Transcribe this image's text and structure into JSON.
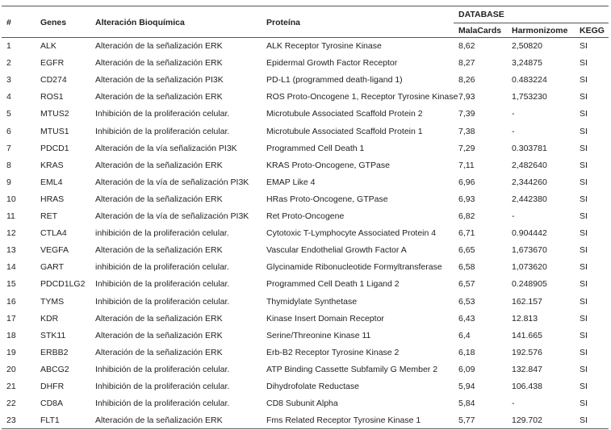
{
  "table": {
    "group_header": "DATABASE",
    "columns": [
      "#",
      "Genes",
      "Alteración Bioquímica",
      "Proteína",
      "MalaCards",
      "Harmonizome",
      "KEGG"
    ],
    "rows": [
      [
        "1",
        "ALK",
        "Alteración de la señalización ERK",
        "ALK Receptor Tyrosine Kinase",
        "8,62",
        "2,50820",
        "SI"
      ],
      [
        "2",
        "EGFR",
        "Alteración de la señalización ERK",
        "Epidermal Growth Factor Receptor",
        "8,27",
        "3,24875",
        "SI"
      ],
      [
        "3",
        "CD274",
        "Alteración de la señalización PI3K",
        "PD-L1 (programmed death-ligand 1)",
        "8,26",
        "0.483224",
        "SI"
      ],
      [
        "4",
        "ROS1",
        "Alteración de la señalización ERK",
        "ROS Proto-Oncogene 1, Receptor Tyrosine Kinase",
        "7,93",
        "1,753230",
        "SI"
      ],
      [
        "5",
        "MTUS2",
        "Inhibición de la proliferación celular.",
        "Microtubule Associated Scaffold Protein 2",
        "7,39",
        "-",
        "SI"
      ],
      [
        "6",
        "MTUS1",
        "Inhibición de la proliferación celular.",
        "Microtubule Associated Scaffold Protein 1",
        "7,38",
        "-",
        "SI"
      ],
      [
        "7",
        "PDCD1",
        "Alteración de la vía señalización PI3K",
        "Programmed Cell Death 1",
        "7,29",
        "0.303781",
        "SI"
      ],
      [
        "8",
        "KRAS",
        "Alteración de la señalización ERK",
        "KRAS Proto-Oncogene, GTPase",
        "7,11",
        "2,482640",
        "SI"
      ],
      [
        "9",
        "EML4",
        "Alteración de la vía de señalización PI3K",
        "EMAP Like 4",
        "6,96",
        "2,344260",
        "SI"
      ],
      [
        "10",
        "HRAS",
        "Alteración de la señalización ERK",
        "HRas Proto-Oncogene, GTPase",
        "6,93",
        "2,442380",
        "SI"
      ],
      [
        "11",
        "RET",
        "Alteración de la vía de señalización PI3K",
        "Ret Proto-Oncogene",
        "6,82",
        "-",
        "SI"
      ],
      [
        "12",
        "CTLA4",
        "inhibición de la proliferación celular.",
        "Cytotoxic T-Lymphocyte Associated Protein 4",
        "6,71",
        "0.904442",
        "SI"
      ],
      [
        "13",
        "VEGFA",
        "Alteración de la señalización ERK",
        "Vascular Endothelial Growth Factor A",
        "6,65",
        "1,673670",
        "SI"
      ],
      [
        "14",
        "GART",
        "inhibición de la proliferación celular.",
        "Glycinamide Ribonucleotide Formyltransferase",
        "6,58",
        "1,073620",
        "SI"
      ],
      [
        "15",
        "PDCD1LG2",
        "Inhibición de la proliferación celular.",
        "Programmed Cell Death 1 Ligand 2",
        "6,57",
        "0.248905",
        "SI"
      ],
      [
        "16",
        "TYMS",
        "Inhibición de la proliferación celular.",
        "Thymidylate Synthetase",
        "6,53",
        "162.157",
        "SI"
      ],
      [
        "17",
        "KDR",
        "Alteración de la señalización ERK",
        "Kinase Insert Domain Receptor",
        "6,43",
        "12.813",
        "SI"
      ],
      [
        "18",
        "STK11",
        "Alteración de la señalización ERK",
        "Serine/Threonine Kinase 11",
        "6,4",
        "141.665",
        "SI"
      ],
      [
        "19",
        "ERBB2",
        "Alteración de la señalización ERK",
        "Erb-B2 Receptor Tyrosine Kinase 2",
        "6,18",
        "192.576",
        "SI"
      ],
      [
        "20",
        "ABCG2",
        "Inhibición de la proliferación celular.",
        "ATP Binding Cassette Subfamily G Member 2",
        "6,09",
        "132.847",
        "SI"
      ],
      [
        "21",
        "DHFR",
        "Inhibición de la proliferación celular.",
        "Dihydrofolate Reductase",
        "5,94",
        "106.438",
        "SI"
      ],
      [
        "22",
        "CD8A",
        "Inhibición de la proliferación celular.",
        "CD8 Subunit Alpha",
        "5,84",
        "-",
        "SI"
      ],
      [
        "23",
        "FLT1",
        "Alteración de la señalización ERK",
        "Fms Related Receptor Tyrosine Kinase 1",
        "5,77",
        "129.702",
        "SI"
      ]
    ]
  }
}
